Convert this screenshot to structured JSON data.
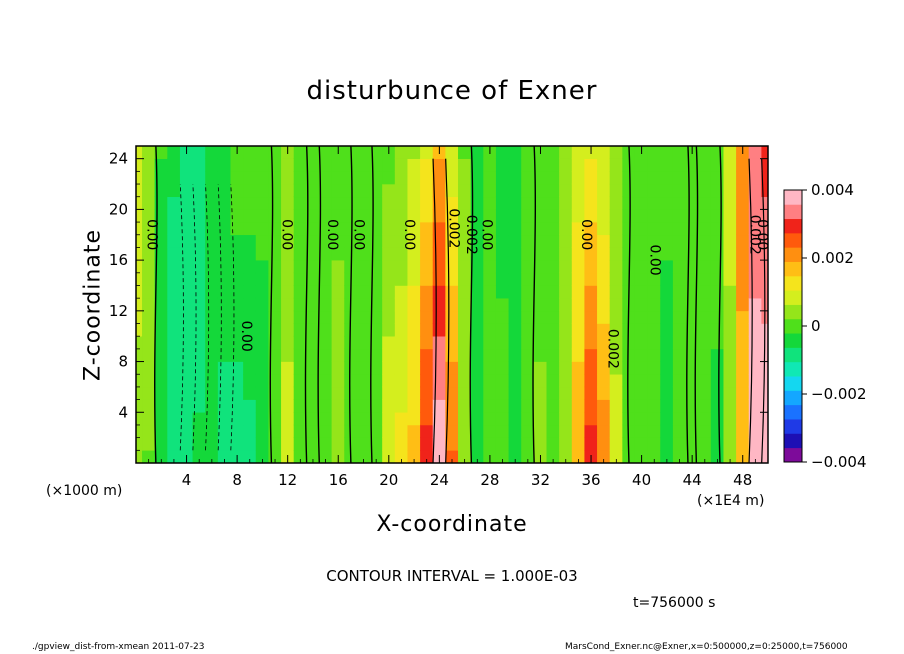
{
  "chart_data": {
    "type": "heatmap",
    "title": "disturbunce of Exner",
    "xlabel": "X-coordinate",
    "ylabel": "Z-coordinate",
    "x_units_left": "(×1000 m)",
    "x_units_right": "(×1E4 m)",
    "xlim": [
      0,
      50
    ],
    "ylim": [
      0,
      25
    ],
    "x_ticks": [
      "4",
      "8",
      "12",
      "16",
      "20",
      "24",
      "28",
      "32",
      "36",
      "40",
      "44",
      "48"
    ],
    "y_ticks": [
      "4",
      "8",
      "12",
      "16",
      "20",
      "24"
    ],
    "colorbar": {
      "range": [
        -0.004,
        0.004
      ],
      "tick_labels": [
        "0.004",
        "0.002",
        "0",
        "−0.002",
        "−0.004"
      ],
      "colors": [
        "#7d0b9a",
        "#1d0fb4",
        "#1f3ae6",
        "#1a72ff",
        "#14a7ff",
        "#14d7f0",
        "#10e8b4",
        "#10e37c",
        "#14d83a",
        "#4fe01b",
        "#95e51a",
        "#d4ee1e",
        "#f5e41c",
        "#ffbe15",
        "#ff8f10",
        "#ff5a0c",
        "#f0231a",
        "#ff7f82",
        "#ffb7c4"
      ]
    },
    "contour_labels": [
      "0.00",
      "0.00",
      "0.00",
      "0.00",
      "0.00",
      "0.002",
      "0.002",
      "0.00",
      "0.00",
      "0.00",
      "0.002",
      "0.00",
      "0.002",
      "0.00"
    ],
    "columns_x": [
      0,
      1,
      2,
      3,
      4,
      5,
      6,
      7,
      8,
      9,
      10,
      11,
      12,
      13,
      14,
      15,
      16,
      17,
      18,
      19,
      20,
      21,
      22,
      23,
      24,
      25,
      26,
      27,
      28,
      29,
      30,
      31,
      32,
      33,
      34,
      35,
      36,
      37,
      38,
      39,
      40,
      41,
      42,
      43,
      44,
      45,
      46,
      47,
      48,
      49,
      50
    ],
    "columns_value_top": [
      0.001,
      0.0006,
      -0.0002,
      -0.0006,
      -0.0008,
      -0.0008,
      -0.0006,
      -0.0003,
      0.0001,
      0.0,
      -0.0001,
      0.0001,
      0.0003,
      0.0,
      -0.0002,
      0.0,
      0.0001,
      -0.0001,
      -0.0002,
      0.0,
      0.0001,
      0.0002,
      0.0006,
      0.001,
      0.0018,
      0.0008,
      0.0002,
      -0.0003,
      -0.0002,
      -0.0004,
      -0.0003,
      -0.0002,
      -0.0002,
      0.0,
      0.0004,
      0.0008,
      0.001,
      0.0006,
      0.0002,
      0.0,
      0.0,
      -0.0001,
      -0.0001,
      0.0,
      0.0001,
      0.0,
      0.0001,
      0.0008,
      0.002,
      0.0032,
      0.003
    ],
    "columns_value_bottom": [
      0.0004,
      0.0002,
      -0.0004,
      -0.0008,
      -0.001,
      -0.0006,
      -0.0004,
      -0.0008,
      -0.001,
      -0.0008,
      -0.0004,
      0.0001,
      0.0008,
      0.0002,
      0.0,
      0.0002,
      0.0004,
      0.0001,
      -0.0002,
      0.0002,
      0.001,
      0.0012,
      0.0016,
      0.003,
      0.004,
      0.0024,
      0.0006,
      -0.0004,
      -0.0002,
      0.0,
      -0.0003,
      0.0,
      0.0004,
      0.0002,
      0.0006,
      0.0018,
      0.003,
      0.0022,
      0.0008,
      0.0,
      -0.0002,
      -0.0002,
      -0.0004,
      -0.0002,
      0.0,
      -0.0002,
      -0.0004,
      0.0004,
      0.0018,
      0.004,
      0.004
    ]
  },
  "contour_interval": "CONTOUR INTERVAL = 1.000E-03",
  "time_label": "t=756000 s",
  "footer_left": "./gpview_dist-from-xmean   2011-07-23",
  "footer_right": "MarsCond_Exner.nc@Exner,x=0:500000,z=0:25000,t=756000"
}
